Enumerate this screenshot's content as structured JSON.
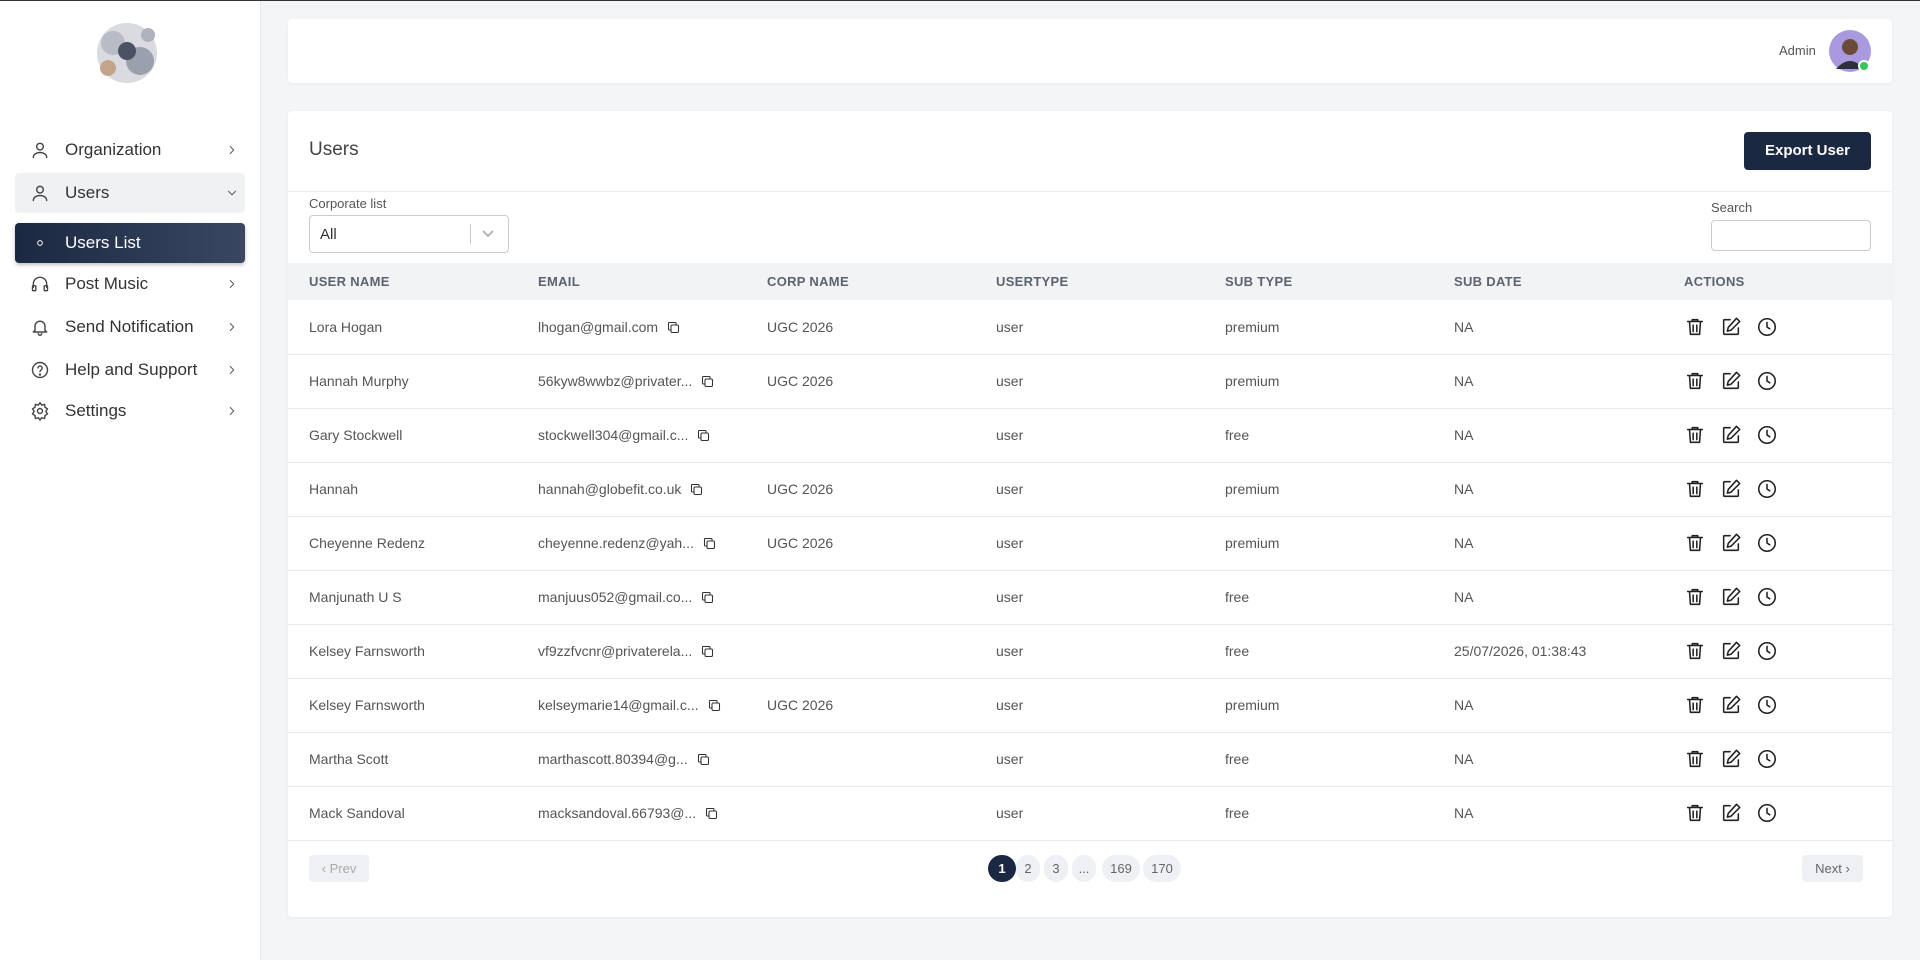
{
  "sidebar": {
    "nav": [
      "Organization",
      "Users",
      "Users List",
      "Post Music",
      "Send Notification",
      "Help and Support",
      "Settings"
    ]
  },
  "header": {
    "user": "Admin"
  },
  "page": {
    "title": "Users",
    "export_button": "Export User",
    "filter_label": "Corporate list",
    "filter_value": "All",
    "search_label": "Search"
  },
  "table": {
    "columns": [
      "USER NAME",
      "EMAIL",
      "CORP NAME",
      "USERTYPE",
      "SUB TYPE",
      "SUB DATE",
      "ACTIONS"
    ],
    "rows": [
      [
        "Lora Hogan",
        "lhogan@gmail.com",
        "UGC 2026",
        "user",
        "premium",
        "NA"
      ],
      [
        "Hannah Murphy",
        "56kyw8wwbz@privater...",
        "UGC 2026",
        "user",
        "premium",
        "NA"
      ],
      [
        "Gary Stockwell",
        "stockwell304@gmail.c...",
        null,
        "user",
        "free",
        "NA"
      ],
      [
        "Hannah",
        "hannah@globefit.co.uk",
        "UGC 2026",
        "user",
        "premium",
        "NA"
      ],
      [
        "Cheyenne Redenz",
        "cheyenne.redenz@yah...",
        "UGC 2026",
        "user",
        "premium",
        "NA"
      ],
      [
        "Manjunath U S",
        "manjuus052@gmail.co...",
        null,
        "user",
        "free",
        "NA"
      ],
      [
        "Kelsey Farnsworth",
        "vf9zzfvcnr@privaterela...",
        null,
        "user",
        "free",
        "25/07/2026, 01:38:43"
      ],
      [
        "Kelsey Farnsworth",
        "kelseymarie14@gmail.c...",
        "UGC 2026",
        "user",
        "premium",
        "NA"
      ],
      [
        "Martha Scott",
        "marthascott.80394@g...",
        null,
        "user",
        "free",
        "NA"
      ],
      [
        "Mack Sandoval",
        "macksandoval.66793@...",
        null,
        "user",
        "free",
        "NA"
      ]
    ]
  },
  "pagination": {
    "prev": "‹ Prev",
    "pages": [
      "1",
      "2",
      "3",
      "...",
      "169",
      "170"
    ],
    "next": "Next ›"
  }
}
